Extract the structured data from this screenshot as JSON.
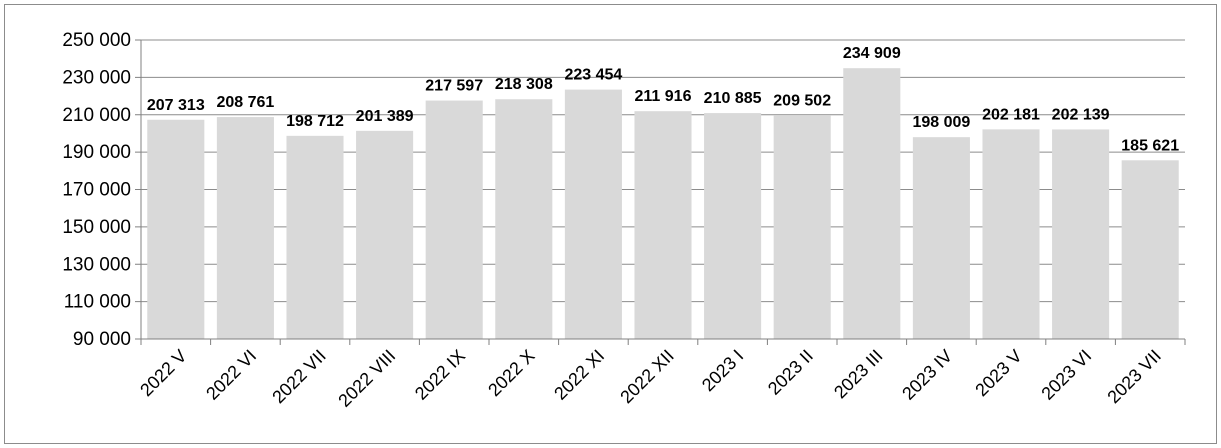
{
  "chart_data": {
    "type": "bar",
    "categories": [
      "2022 V",
      "2022 VI",
      "2022 VII",
      "2022 VIII",
      "2022 IX",
      "2022 X",
      "2022 XI",
      "2022 XII",
      "2023 I",
      "2023 II",
      "2023 III",
      "2023 IV",
      "2023 V",
      "2023 VI",
      "2023 VII"
    ],
    "values": [
      207313,
      208761,
      198712,
      201389,
      217597,
      218308,
      223454,
      211916,
      210885,
      209502,
      234909,
      198009,
      202181,
      202139,
      185621
    ],
    "value_labels": [
      "207 313",
      "208 761",
      "198 712",
      "201 389",
      "217 597",
      "218 308",
      "223 454",
      "211 916",
      "210 885",
      "209 502",
      "234 909",
      "198 009",
      "202 181",
      "202 139",
      "185 621"
    ],
    "y_ticks": [
      90000,
      110000,
      130000,
      150000,
      170000,
      190000,
      210000,
      230000,
      250000
    ],
    "y_tick_labels": [
      "90 000",
      "110 000",
      "130 000",
      "150 000",
      "170 000",
      "190 000",
      "210 000",
      "230 000",
      "250 000"
    ],
    "ylim": [
      90000,
      250000
    ],
    "grid": true,
    "bar_color": "#d9d9d9",
    "grid_color": "#8c8c8c",
    "axis_color": "#808080",
    "title": "",
    "xlabel": "",
    "ylabel": ""
  }
}
